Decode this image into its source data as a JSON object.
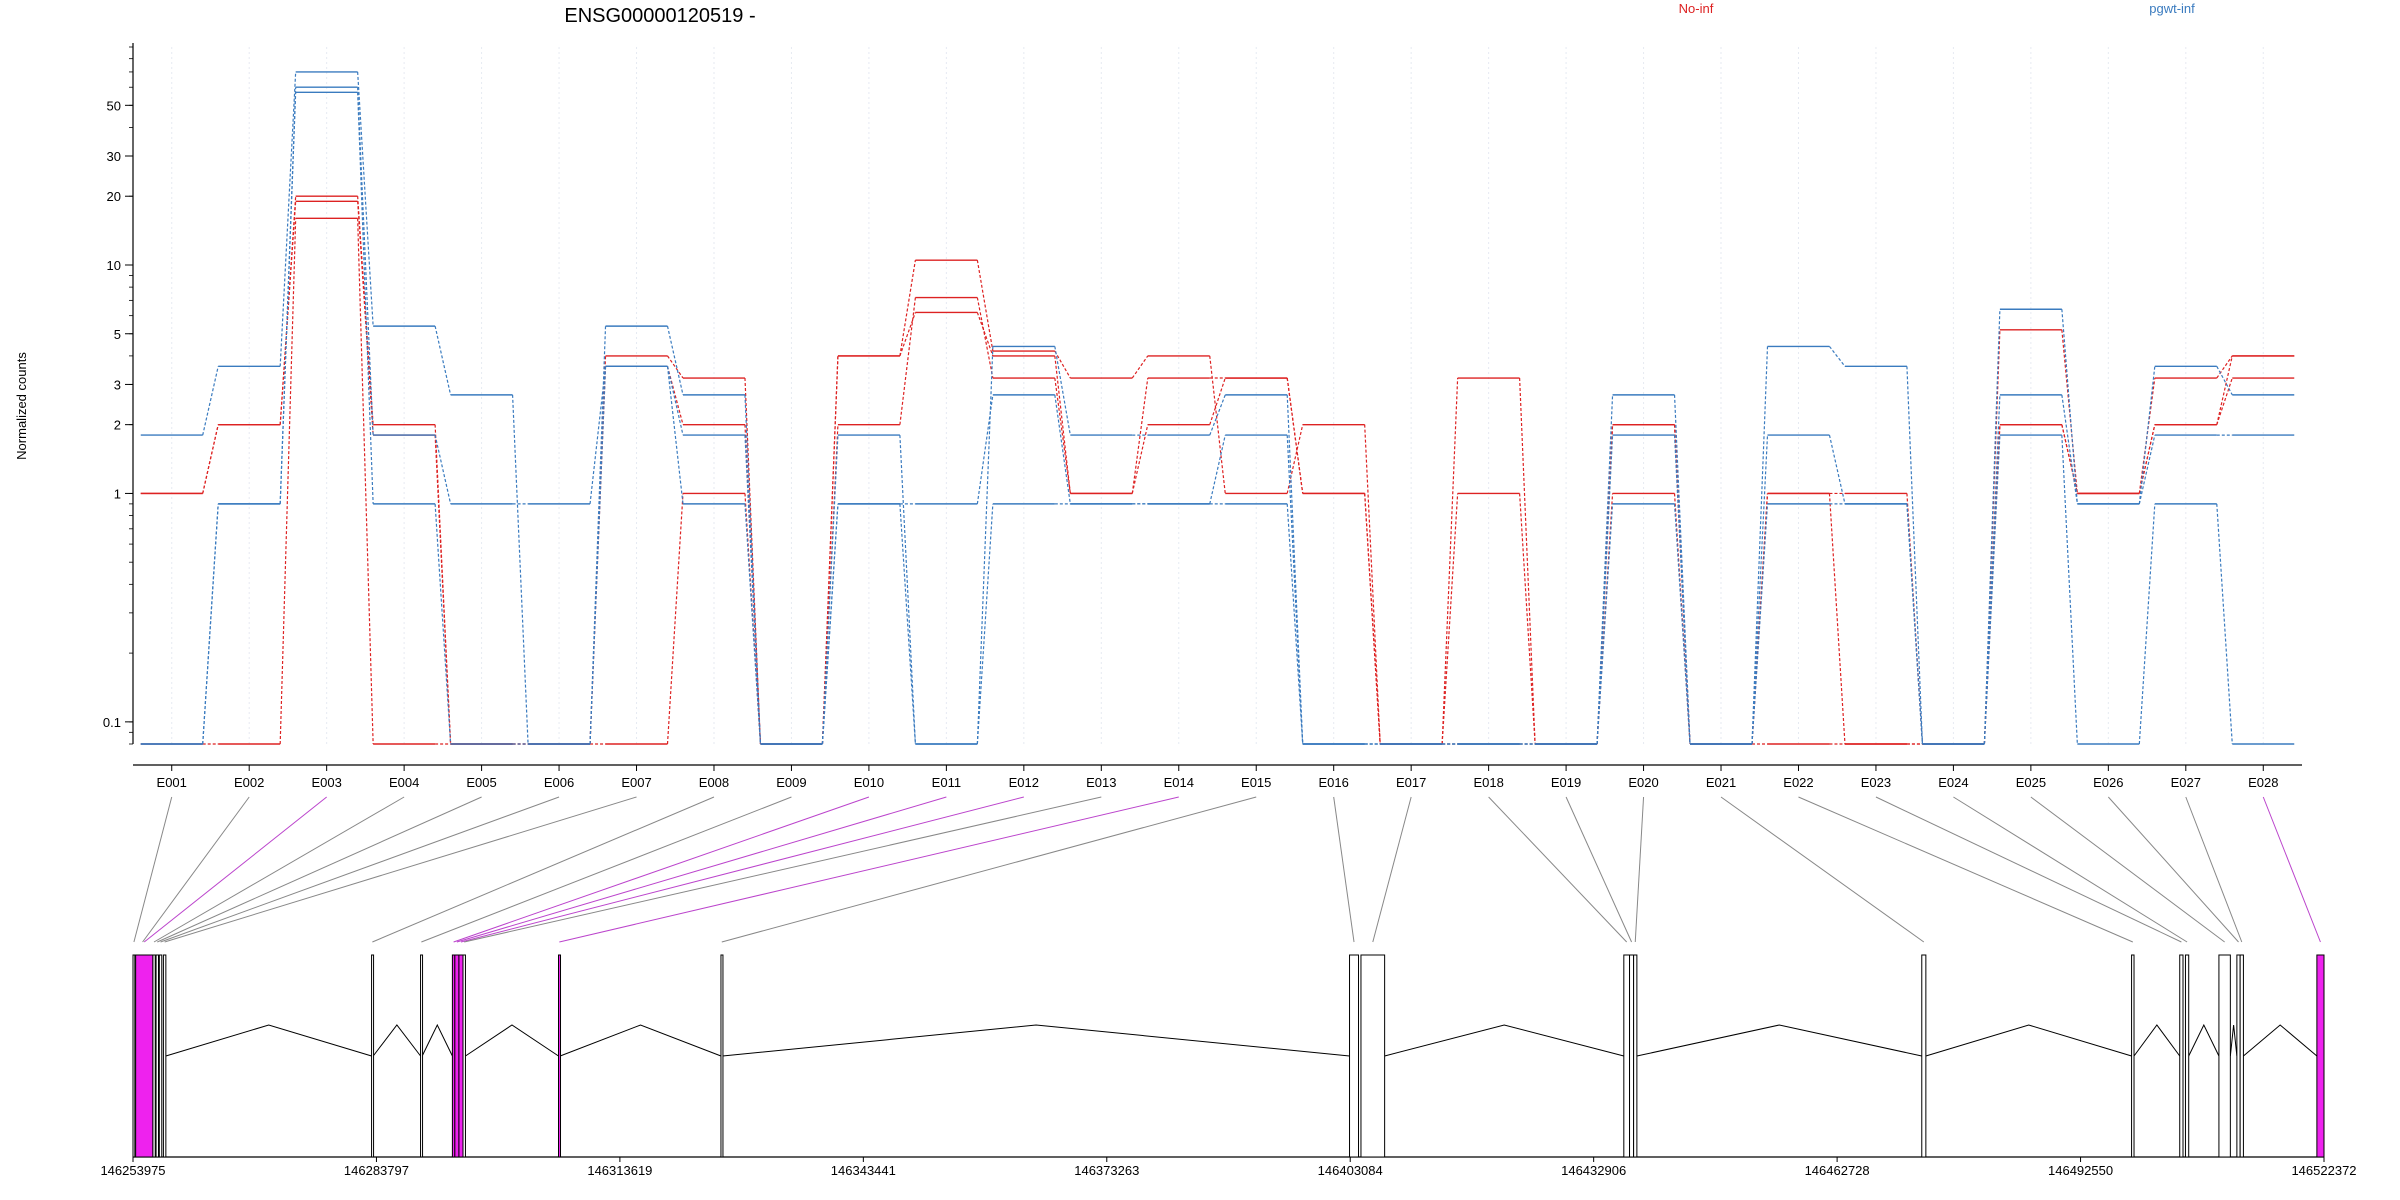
{
  "chart_data": [
    {
      "type": "line",
      "title": "ENSG00000120519 -",
      "ylabel": "Normalized counts",
      "y_scale": "log",
      "ylim": [
        0.08,
        90
      ],
      "y_ticks": [
        0.1,
        1,
        2,
        3,
        5,
        10,
        20,
        30,
        50
      ],
      "y_tick_labels": [
        "0.1",
        "1",
        "2",
        "3",
        "5",
        "10",
        "20",
        "30",
        "50"
      ],
      "categories": [
        "E001",
        "E002",
        "E003",
        "E004",
        "E005",
        "E006",
        "E007",
        "E008",
        "E009",
        "E010",
        "E011",
        "E012",
        "E013",
        "E014",
        "E015",
        "E016",
        "E017",
        "E018",
        "E019",
        "E020",
        "E021",
        "E022",
        "E023",
        "E024",
        "E025",
        "E026",
        "E027",
        "E028"
      ],
      "legend": [
        "No-inf",
        "pgwt-inf"
      ],
      "colors": {
        "No-inf": "#dd2222",
        "pgwt-inf": "#3a7bbf"
      },
      "series": [
        {
          "name": "No-inf",
          "values": [
            1.0,
            2.0,
            19.0,
            1.8,
            0.08,
            0.08,
            3.6,
            2.0,
            0.08,
            4.0,
            6.2,
            4.0,
            1.0,
            3.2,
            3.2,
            1.0,
            0.08,
            0.08,
            0.08,
            2.0,
            0.08,
            1.0,
            1.0,
            0.08,
            2.0,
            1.0,
            2.0,
            4.0
          ]
        },
        {
          "name": "No-inf",
          "values": [
            1.0,
            2.0,
            20.0,
            2.0,
            0.08,
            0.08,
            4.0,
            3.2,
            0.08,
            4.0,
            10.5,
            4.2,
            3.2,
            4.0,
            1.0,
            2.0,
            0.08,
            3.2,
            0.08,
            1.0,
            0.08,
            0.08,
            0.08,
            0.08,
            5.2,
            1.0,
            3.2,
            4.0
          ]
        },
        {
          "name": "No-inf",
          "values": [
            0.08,
            0.08,
            16.0,
            0.08,
            0.08,
            0.08,
            0.08,
            1.0,
            0.08,
            2.0,
            7.2,
            3.2,
            1.0,
            2.0,
            3.2,
            1.0,
            0.08,
            1.0,
            0.08,
            2.0,
            0.08,
            1.0,
            0.08,
            0.08,
            2.0,
            1.0,
            2.0,
            3.2
          ]
        },
        {
          "name": "pgwt-inf",
          "values": [
            1.8,
            3.6,
            70.0,
            5.4,
            2.7,
            0.08,
            5.4,
            2.7,
            0.08,
            1.8,
            0.08,
            4.4,
            1.8,
            1.8,
            2.7,
            0.08,
            0.08,
            0.08,
            0.08,
            2.7,
            0.08,
            4.4,
            3.6,
            0.08,
            6.4,
            0.9,
            3.6,
            2.7
          ]
        },
        {
          "name": "pgwt-inf",
          "values": [
            0.08,
            0.9,
            60.0,
            1.8,
            0.9,
            0.9,
            3.6,
            1.8,
            0.08,
            0.9,
            0.9,
            2.7,
            0.9,
            0.9,
            1.8,
            0.08,
            0.08,
            0.08,
            0.08,
            1.8,
            0.08,
            1.8,
            0.9,
            0.08,
            2.7,
            0.9,
            1.8,
            1.8
          ]
        },
        {
          "name": "pgwt-inf",
          "values": [
            0.08,
            0.9,
            57.0,
            0.9,
            0.08,
            0.08,
            3.6,
            0.9,
            0.08,
            0.9,
            0.08,
            0.9,
            0.9,
            0.9,
            0.9,
            0.08,
            0.08,
            0.08,
            0.08,
            0.9,
            0.08,
            0.9,
            0.9,
            0.08,
            1.8,
            0.08,
            0.9,
            0.08
          ]
        }
      ]
    },
    {
      "type": "gene-model",
      "genomic_range": [
        146253975,
        146522372
      ],
      "axis_ticks": [
        146253975,
        146283797,
        146313619,
        146343441,
        146373263,
        146403084,
        146432906,
        146462728,
        146492550,
        146522372
      ],
      "axis_tick_labels": [
        "146253975",
        "146283797",
        "146313619",
        "146343441",
        "146373263",
        "146403084",
        "146432906",
        "146462728",
        "146492550",
        "146522372"
      ],
      "highlight_color": "#ee22ee",
      "exons": [
        {
          "id": "E001",
          "start": 146253975,
          "end": 146254200,
          "highlight": false
        },
        {
          "id": "E002",
          "start": 146254200,
          "end": 146256100,
          "highlight": false
        },
        {
          "id": "E003",
          "start": 146254300,
          "end": 146256400,
          "highlight": true
        },
        {
          "id": "E004",
          "start": 146256400,
          "end": 146256700,
          "highlight": false
        },
        {
          "id": "E005",
          "start": 146256800,
          "end": 146257100,
          "highlight": false
        },
        {
          "id": "E006",
          "start": 146257200,
          "end": 146257500,
          "highlight": false
        },
        {
          "id": "E007",
          "start": 146257700,
          "end": 146258000,
          "highlight": false
        },
        {
          "id": "E008",
          "start": 146283200,
          "end": 146283400,
          "highlight": false
        },
        {
          "id": "E009",
          "start": 146289200,
          "end": 146289400,
          "highlight": false
        },
        {
          "id": "E010",
          "start": 146293100,
          "end": 146293400,
          "highlight": true
        },
        {
          "id": "E011",
          "start": 146293400,
          "end": 146293900,
          "highlight": true
        },
        {
          "id": "E012",
          "start": 146293900,
          "end": 146294400,
          "highlight": true
        },
        {
          "id": "E013",
          "start": 146294400,
          "end": 146294700,
          "highlight": false
        },
        {
          "id": "E014",
          "start": 146306100,
          "end": 146306300,
          "highlight": true
        },
        {
          "id": "E015",
          "start": 146326000,
          "end": 146326200,
          "highlight": false
        },
        {
          "id": "E016",
          "start": 146403000,
          "end": 146404100,
          "highlight": false
        },
        {
          "id": "E017",
          "start": 146404400,
          "end": 146407300,
          "highlight": false
        },
        {
          "id": "E018",
          "start": 146436600,
          "end": 146437300,
          "highlight": false
        },
        {
          "id": "E019",
          "start": 146437300,
          "end": 146437800,
          "highlight": false
        },
        {
          "id": "E020",
          "start": 146437800,
          "end": 146438200,
          "highlight": false
        },
        {
          "id": "E021",
          "start": 146473100,
          "end": 146473600,
          "highlight": false
        },
        {
          "id": "E022",
          "start": 146498800,
          "end": 146499100,
          "highlight": false
        },
        {
          "id": "E023",
          "start": 146504700,
          "end": 146505100,
          "highlight": false
        },
        {
          "id": "E024",
          "start": 146505400,
          "end": 146505800,
          "highlight": false
        },
        {
          "id": "E025",
          "start": 146509500,
          "end": 146510900,
          "highlight": false
        },
        {
          "id": "E026",
          "start": 146511700,
          "end": 146512100,
          "highlight": false
        },
        {
          "id": "E027",
          "start": 146512100,
          "end": 146512500,
          "highlight": false
        },
        {
          "id": "E028",
          "start": 146521500,
          "end": 146522372,
          "highlight": true
        }
      ]
    }
  ]
}
